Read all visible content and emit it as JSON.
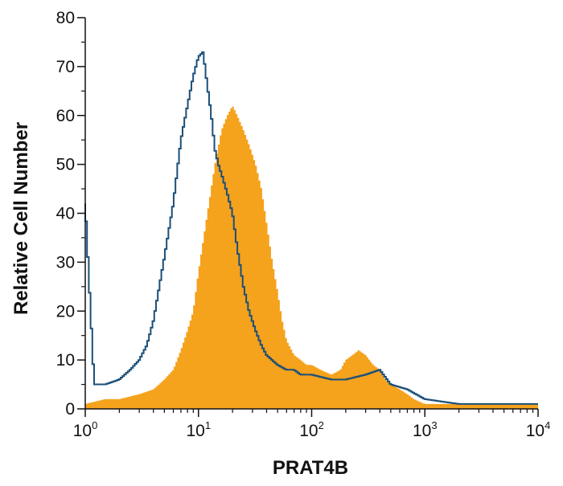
{
  "chart_data": {
    "type": "area",
    "xlabel": "PRAT4B",
    "ylabel": "Relative Cell Number",
    "x_scale": "log",
    "xlim": [
      1,
      10000
    ],
    "ylim": [
      0,
      80
    ],
    "y_ticks": [
      0,
      10,
      20,
      30,
      40,
      50,
      60,
      70,
      80
    ],
    "x_ticks": [
      {
        "value": 1,
        "base": "10",
        "exp": "0"
      },
      {
        "value": 10,
        "base": "10",
        "exp": "1"
      },
      {
        "value": 100,
        "base": "10",
        "exp": "2"
      },
      {
        "value": 1000,
        "base": "10",
        "exp": "3"
      },
      {
        "value": 10000,
        "base": "10",
        "exp": "4"
      }
    ],
    "grid": false,
    "legend": "none",
    "series": [
      {
        "style": "filled histogram",
        "color": "#f5a21d",
        "x": [
          1,
          1.5,
          2,
          3,
          4,
          5,
          6,
          7,
          8,
          9,
          10,
          12,
          14,
          16,
          18,
          20,
          22,
          25,
          28,
          32,
          36,
          40,
          45,
          50,
          55,
          60,
          70,
          80,
          90,
          100,
          120,
          150,
          180,
          200,
          230,
          260,
          300,
          350,
          400,
          450,
          500,
          600,
          700,
          800,
          1000,
          1500,
          2000,
          3000,
          5000,
          8000,
          10000
        ],
        "y": [
          1,
          2,
          2,
          3,
          4,
          6,
          8,
          12,
          16,
          20,
          28,
          40,
          50,
          57,
          60,
          62,
          60,
          57,
          54,
          50,
          45,
          38,
          30,
          24,
          18,
          14,
          11,
          10,
          9,
          9,
          8,
          7,
          8,
          10,
          11,
          12,
          11,
          9,
          8,
          6,
          5,
          4,
          3,
          2,
          1,
          1,
          1,
          1,
          1,
          1,
          1
        ]
      },
      {
        "style": "outline histogram",
        "color": "#1b4f79",
        "x": [
          1,
          1.2,
          1.5,
          2,
          2.5,
          3,
          3.5,
          4,
          5,
          6,
          7,
          8,
          9,
          10,
          11,
          12,
          13,
          14,
          15,
          16,
          18,
          20,
          22,
          25,
          28,
          32,
          36,
          40,
          50,
          60,
          70,
          80,
          100,
          150,
          200,
          300,
          400,
          500,
          700,
          1000,
          2000,
          5000,
          10000
        ],
        "y": [
          42,
          5,
          5,
          6,
          8,
          10,
          13,
          18,
          31,
          42,
          55,
          62,
          68,
          72,
          73,
          66,
          60,
          53,
          50,
          48,
          44,
          40,
          33,
          25,
          20,
          16,
          13,
          11,
          9,
          8,
          8,
          7,
          7,
          6,
          6,
          7,
          8,
          5,
          4,
          2,
          1,
          1,
          1
        ]
      }
    ]
  }
}
